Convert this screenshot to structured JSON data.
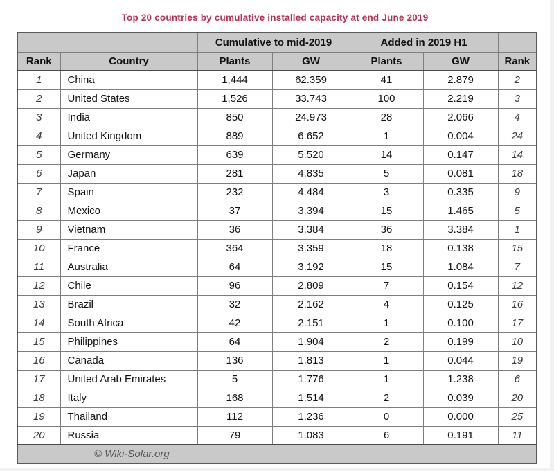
{
  "title": "Top 20 countries by cumulative installed capacity at end June 2019",
  "colors": {
    "title_text": "#b8304f",
    "header_background": "#c9c9c9",
    "border": "#7e7e7e",
    "rank_text": "#3b3b3b",
    "footer_text": "#555555"
  },
  "chart_data": {
    "type": "table",
    "title": "Top 20 countries by cumulative installed capacity at end June 2019",
    "group_headers": [
      "Cumulative to mid-2019",
      "Added in 2019 H1"
    ],
    "columns": [
      "Rank",
      "Country",
      "Plants",
      "GW",
      "Plants",
      "GW",
      "Rank"
    ],
    "rows": [
      [
        "1",
        "China",
        "1,444",
        "62.359",
        "41",
        "2.879",
        "2"
      ],
      [
        "2",
        "United States",
        "1,526",
        "33.743",
        "100",
        "2.219",
        "3"
      ],
      [
        "3",
        "India",
        "850",
        "24.973",
        "28",
        "2.066",
        "4"
      ],
      [
        "4",
        "United Kingdom",
        "889",
        "6.652",
        "1",
        "0.004",
        "24"
      ],
      [
        "5",
        "Germany",
        "639",
        "5.520",
        "14",
        "0.147",
        "14"
      ],
      [
        "6",
        "Japan",
        "281",
        "4.835",
        "5",
        "0.081",
        "18"
      ],
      [
        "7",
        "Spain",
        "232",
        "4.484",
        "3",
        "0.335",
        "9"
      ],
      [
        "8",
        "Mexico",
        "37",
        "3.394",
        "15",
        "1.465",
        "5"
      ],
      [
        "9",
        "Vietnam",
        "36",
        "3.384",
        "36",
        "3.384",
        "1"
      ],
      [
        "10",
        "France",
        "364",
        "3.359",
        "18",
        "0.138",
        "15"
      ],
      [
        "11",
        "Australia",
        "64",
        "3.192",
        "15",
        "1.084",
        "7"
      ],
      [
        "12",
        "Chile",
        "96",
        "2.809",
        "7",
        "0.154",
        "12"
      ],
      [
        "13",
        "Brazil",
        "32",
        "2.162",
        "4",
        "0.125",
        "16"
      ],
      [
        "14",
        "South Africa",
        "42",
        "2.151",
        "1",
        "0.100",
        "17"
      ],
      [
        "15",
        "Philippines",
        "64",
        "1.904",
        "2",
        "0.199",
        "10"
      ],
      [
        "16",
        "Canada",
        "136",
        "1.813",
        "1",
        "0.044",
        "19"
      ],
      [
        "17",
        "United Arab Emirates",
        "5",
        "1.776",
        "1",
        "1.238",
        "6"
      ],
      [
        "18",
        "Italy",
        "168",
        "1.514",
        "2",
        "0.039",
        "20"
      ],
      [
        "19",
        "Thailand",
        "112",
        "1.236",
        "0",
        "0.000",
        "25"
      ],
      [
        "20",
        "Russia",
        "79",
        "1.083",
        "6",
        "0.191",
        "11"
      ]
    ],
    "footer": "© Wiki-Solar.org"
  }
}
